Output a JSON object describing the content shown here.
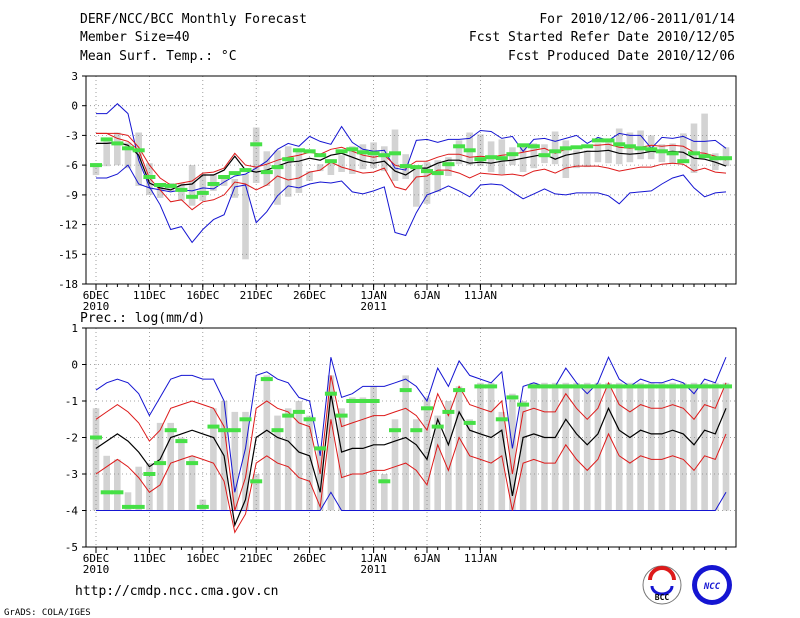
{
  "header": {
    "title": "DERF/NCC/BCC Monthly Forecast",
    "member_size": "Member Size=40",
    "variable": "Mean Surf. Temp.: °C",
    "period": "For 2010/12/06-2011/01/14",
    "started": "Fcst Started Refer Date 2010/12/05",
    "produced": "Fcst Produced Date 2010/12/06"
  },
  "footer": {
    "url": "http://cmdp.ncc.cma.gov.cn",
    "grads": "GrADS: COLA/IGES",
    "logo1": "BCC",
    "logo2": "NCC"
  },
  "colors": {
    "bar": "#d3d3d3",
    "green": "#46e046",
    "red": "#dd1a1a",
    "blue": "#1515d2",
    "black": "#000000",
    "grid": "#888888"
  },
  "chart_data": [
    {
      "type": "line",
      "title": "Mean Surf. Temp.: °C",
      "x_ticks": [
        "6DEC",
        "11DEC",
        "16DEC",
        "21DEC",
        "26DEC",
        "1JAN",
        "6JAN",
        "11JAN"
      ],
      "x_year_labels": [
        "2010",
        "2011"
      ],
      "ylim": [
        -18,
        3
      ],
      "y_ticks": [
        "3",
        "0",
        "-3",
        "-6",
        "-9",
        "-12",
        "-15",
        "-18"
      ],
      "series": [
        {
          "name": "max",
          "values": [
            -0.8,
            -0.8,
            0.2,
            -0.8,
            -5.5,
            -8.2,
            -10,
            -12.5,
            -12.2,
            -13.8,
            -12.5,
            -11.5,
            -11,
            -8.2,
            -8,
            -11.8,
            -10.7,
            -9.1,
            -8.1,
            -8.3,
            -7.9,
            -7.7,
            -7.8,
            -7.6,
            -8.7,
            -8.9,
            -8.6,
            -8.2,
            -12.8,
            -13.1,
            -10.8,
            -9,
            -8.6,
            -8.1,
            -8.6,
            -9.2,
            -8,
            -7.9,
            -8,
            -8.7,
            -9.4,
            -8.9,
            -8.4,
            -8.9,
            -9,
            -8.8,
            -8.8,
            -8.8,
            -9.1,
            -9.9,
            -8.8,
            -8.7,
            -8.6,
            -7.9,
            -7.3,
            -7,
            -8.3,
            -9.2,
            -8.8,
            -8.7
          ]
        },
        {
          "name": "upper",
          "values": [
            -2.8,
            -2.8,
            -3.3,
            -3.6,
            -4.5,
            -7.3,
            -8.5,
            -9.7,
            -9.5,
            -10.5,
            -9.7,
            -9.5,
            -9,
            -7.7,
            -7.9,
            -8.5,
            -8,
            -7.1,
            -7.5,
            -7.3,
            -6.7,
            -6.5,
            -5.7,
            -6.2,
            -6.5,
            -6.8,
            -6.7,
            -6.3,
            -8.2,
            -8.5,
            -7.2,
            -7.1,
            -6.5,
            -6.5,
            -6.8,
            -7.3,
            -6.8,
            -6.9,
            -7,
            -6.9,
            -7.1,
            -6.6,
            -6.4,
            -6.8,
            -6.3,
            -6.1,
            -6.1,
            -6.1,
            -6.3,
            -6.6,
            -6.4,
            -6.2,
            -6.2,
            -5.9,
            -5.8,
            -5.9,
            -6.6,
            -6.3,
            -6.7,
            -6.8
          ]
        },
        {
          "name": "median",
          "values": [
            -3.8,
            -3.8,
            -3.7,
            -4,
            -5,
            -7.8,
            -8.3,
            -8.5,
            -8,
            -7.9,
            -7,
            -7,
            -6.5,
            -5.1,
            -6.5,
            -6.7,
            -6.5,
            -6.1,
            -5.7,
            -5.6,
            -5.3,
            -5.5,
            -5,
            -4.8,
            -5.2,
            -5.6,
            -5.8,
            -5.6,
            -6.6,
            -7,
            -6.3,
            -6.3,
            -5.8,
            -5.5,
            -5.5,
            -5.8,
            -5.7,
            -5.8,
            -5.6,
            -5.5,
            -5.3,
            -5.1,
            -4.9,
            -5.4,
            -5,
            -4.8,
            -4.6,
            -4.6,
            -4.5,
            -4.8,
            -4.9,
            -4.8,
            -4.6,
            -4.7,
            -4.6,
            -4.7,
            -5.3,
            -5.4,
            -5.7,
            -6.1
          ]
        },
        {
          "name": "lower",
          "values": [
            -2.8,
            -2.8,
            -2.8,
            -3,
            -4.2,
            -6,
            -7.3,
            -8,
            -7.8,
            -7.6,
            -6.8,
            -6.7,
            -6.3,
            -4.8,
            -6,
            -6.2,
            -5.9,
            -5.5,
            -5.2,
            -5,
            -4.7,
            -4.9,
            -4.4,
            -4.2,
            -4.6,
            -5,
            -5.2,
            -5,
            -6,
            -6.3,
            -5.6,
            -5.6,
            -5.2,
            -4.9,
            -4.9,
            -5.2,
            -5.1,
            -5.2,
            -5,
            -4.9,
            -4.7,
            -4.5,
            -4.3,
            -4.8,
            -4.4,
            -4.2,
            -4,
            -4,
            -3.9,
            -4.2,
            -4.3,
            -4.2,
            -4,
            -4.1,
            -4,
            -4.1,
            -4.7,
            -4.8,
            -5.1,
            -5.5
          ]
        },
        {
          "name": "min",
          "values": [
            -7.3,
            -7.3,
            -6.9,
            -6,
            -7.9,
            -8.3,
            -8.5,
            -8.7,
            -8.5,
            -8.6,
            -8.3,
            -8.4,
            -7.7,
            -7.1,
            -6.9,
            -6.3,
            -5.6,
            -4.4,
            -3.8,
            -4.1,
            -3.1,
            -3.6,
            -3.9,
            -2.1,
            -3.7,
            -4.4,
            -4.6,
            -4.5,
            -6.3,
            -6.5,
            -3.5,
            -3.4,
            -3.7,
            -3.4,
            -3.4,
            -3.3,
            -2.5,
            -2.6,
            -3.3,
            -3.1,
            -4.6,
            -3.4,
            -3.3,
            -3.6,
            -3.3,
            -3,
            -3.8,
            -3.2,
            -3.5,
            -2.8,
            -3,
            -3,
            -4.3,
            -3.2,
            -3.3,
            -3.1,
            -3.6,
            -3.6,
            -3.5,
            -4.3
          ]
        },
        {
          "name": "green",
          "values": [
            -6,
            -3.4,
            -3.8,
            -4.3,
            -4.5,
            -7.2,
            -8,
            -8.1,
            -8.5,
            -9.2,
            -8.8,
            -7.9,
            -7.2,
            -6.8,
            -6.5,
            -3.9,
            -6.7,
            -6.2,
            -5.4,
            -4.5,
            -4.6,
            -5,
            -5.6,
            -4.6,
            -4.4,
            -4.7,
            -4.8,
            -5,
            -4.8,
            -6.1,
            -6.2,
            -6.6,
            -6.8,
            -5.9,
            -4.1,
            -4.5,
            -5.4,
            -5.2,
            -5.3,
            -4.9,
            -4,
            -4.1,
            -5,
            -4.6,
            -4.3,
            -4.2,
            -4.1,
            -3.5,
            -3.5,
            -3.9,
            -4.1,
            -4.3,
            -4.4,
            -4.6,
            -4.8,
            -5.6,
            -4.8,
            -5.1,
            -5.3,
            -5.3
          ]
        },
        {
          "name": "obs_bar_top",
          "values": [
            -5.8,
            -3.6,
            -2.7,
            -3.7,
            -2.7,
            -5.8,
            -7.8,
            -7.8,
            -7.8,
            -6,
            -6.9,
            -6.9,
            -7.1,
            -7.4,
            -6.9,
            -2.2,
            -4.6,
            -4.5,
            -4.1,
            -4.5,
            -6.6,
            -5.9,
            -5.4,
            -5,
            -4.1,
            -3.9,
            -3.7,
            -4.1,
            -2.4,
            -4.9,
            -6.1,
            -5.7,
            -5.5,
            -5.2,
            -3.5,
            -2.7,
            -2.9,
            -3.6,
            -3.4,
            -4.2,
            -3.9,
            -3.8,
            -3.9,
            -2.6,
            -3.5,
            -4.5,
            -4.5,
            -3.8,
            -3.5,
            -2.3,
            -2.7,
            -2.5,
            -3,
            -3.9,
            -3.8,
            -2.8,
            -1.8,
            -0.8,
            -4.8,
            -4.2
          ]
        },
        {
          "name": "obs_bar_bottom",
          "values": [
            -7,
            -6.1,
            -6,
            -6.3,
            -8.1,
            -9,
            -9.3,
            -8.6,
            -9.6,
            -10.1,
            -9.6,
            -8.6,
            -8.1,
            -9.3,
            -15.5,
            -7.8,
            -8.1,
            -10,
            -9.2,
            -8.8,
            -7.6,
            -6.6,
            -7,
            -6.7,
            -6.9,
            -6.4,
            -6.3,
            -6.6,
            -7.6,
            -7.4,
            -10.2,
            -9.9,
            -8.7,
            -7.1,
            -5.9,
            -6,
            -6.1,
            -6.7,
            -6.9,
            -6,
            -6.7,
            -6.3,
            -5.8,
            -5.9,
            -7.3,
            -6.3,
            -6.2,
            -5.7,
            -5.8,
            -5.9,
            -5.7,
            -5.4,
            -5.4,
            -5.7,
            -5.8,
            -5.5,
            -6.8,
            -5.1,
            -6.5,
            -6.1
          ]
        }
      ]
    },
    {
      "type": "line",
      "title": "Prec.: log(mm/d)",
      "x_ticks": [
        "6DEC",
        "11DEC",
        "16DEC",
        "21DEC",
        "26DEC",
        "1JAN",
        "6JAN",
        "11JAN"
      ],
      "x_year_labels": [
        "2010",
        "2011"
      ],
      "ylim": [
        -5,
        1
      ],
      "y_ticks": [
        "1",
        "0",
        "-1",
        "-2",
        "-3",
        "-4",
        "-5"
      ],
      "series": [
        {
          "name": "max",
          "values": [
            -0.7,
            -0.5,
            -0.4,
            -0.5,
            -0.8,
            -1.4,
            -0.9,
            -0.4,
            -0.3,
            -0.3,
            -0.4,
            -0.4,
            -1,
            -3.5,
            -2.3,
            -0.3,
            -0.2,
            -0.4,
            -0.5,
            -0.9,
            -1,
            -2.5,
            0.2,
            -0.9,
            -0.8,
            -0.6,
            -0.6,
            -0.6,
            -0.5,
            -0.4,
            -0.6,
            -1,
            -0.1,
            -0.6,
            0.1,
            -0.3,
            -0.4,
            -0.5,
            -0.2,
            -2.3,
            -0.6,
            -0.5,
            -0.6,
            -0.6,
            -0.1,
            -0.5,
            -0.8,
            -0.5,
            0.2,
            -0.4,
            -0.6,
            -0.4,
            -0.5,
            -0.5,
            -0.4,
            -0.5,
            -0.8,
            -0.4,
            -0.5,
            0.2
          ]
        },
        {
          "name": "upper",
          "values": [
            -1.5,
            -1.3,
            -1.1,
            -1.3,
            -1.6,
            -2.1,
            -1.8,
            -1.2,
            -1.1,
            -1,
            -1.1,
            -1.2,
            -1.7,
            -4,
            -3.1,
            -1.2,
            -1,
            -1.2,
            -1.3,
            -1.6,
            -1.7,
            -3,
            -0.3,
            -1.7,
            -1.6,
            -1.5,
            -1.4,
            -1.4,
            -1.3,
            -1.2,
            -1.4,
            -1.8,
            -0.8,
            -1.4,
            -0.6,
            -1.1,
            -1.2,
            -1.3,
            -1,
            -3,
            -1.3,
            -1.2,
            -1.3,
            -1.3,
            -0.8,
            -1.2,
            -1.5,
            -1.2,
            -0.5,
            -1.1,
            -1.3,
            -1.1,
            -1.2,
            -1.2,
            -1.1,
            -1.2,
            -1.5,
            -1.1,
            -1.2,
            -0.5
          ]
        },
        {
          "name": "median",
          "values": [
            -2.3,
            -2.1,
            -1.9,
            -2.1,
            -2.4,
            -2.8,
            -2.6,
            -2,
            -1.9,
            -1.8,
            -1.9,
            -2,
            -2.5,
            -4.4,
            -3.7,
            -2,
            -1.8,
            -2,
            -2.1,
            -2.4,
            -2.5,
            -3.5,
            -0.8,
            -2.4,
            -2.3,
            -2.3,
            -2.2,
            -2.2,
            -2.1,
            -2,
            -2.2,
            -2.6,
            -1.5,
            -2.2,
            -1.3,
            -1.8,
            -1.9,
            -2,
            -1.8,
            -3.6,
            -2,
            -1.9,
            -2,
            -2,
            -1.5,
            -1.9,
            -2.2,
            -1.9,
            -1.2,
            -1.8,
            -2,
            -1.8,
            -1.9,
            -1.9,
            -1.8,
            -1.9,
            -2.2,
            -1.8,
            -1.9,
            -1.2
          ]
        },
        {
          "name": "lower",
          "values": [
            -3,
            -2.8,
            -2.6,
            -2.8,
            -3.1,
            -3.5,
            -3.3,
            -2.7,
            -2.6,
            -2.5,
            -2.6,
            -2.7,
            -3.2,
            -4.6,
            -4.1,
            -2.7,
            -2.5,
            -2.7,
            -2.8,
            -3.1,
            -3.2,
            -3.9,
            -1.5,
            -3.1,
            -3,
            -3,
            -2.9,
            -2.9,
            -2.8,
            -2.7,
            -2.9,
            -3.3,
            -2.2,
            -2.9,
            -2,
            -2.5,
            -2.6,
            -2.7,
            -2.5,
            -4,
            -2.7,
            -2.6,
            -2.7,
            -2.7,
            -2.2,
            -2.6,
            -2.9,
            -2.6,
            -1.9,
            -2.5,
            -2.7,
            -2.5,
            -2.6,
            -2.6,
            -2.5,
            -2.6,
            -2.9,
            -2.5,
            -2.6,
            -1.9
          ]
        },
        {
          "name": "min",
          "values": [
            -4,
            -4,
            -4,
            -4,
            -4,
            -4,
            -4,
            -4,
            -4,
            -4,
            -4,
            -4,
            -4,
            -4,
            -4,
            -4,
            -4,
            -4,
            -4,
            -4,
            -4,
            -4,
            -3.5,
            -4,
            -4,
            -4,
            -4,
            -4,
            -4,
            -4,
            -4,
            -4,
            -4,
            -4,
            -4,
            -4,
            -4,
            -4,
            -4,
            -4,
            -4,
            -4,
            -4,
            -4,
            -4,
            -4,
            -4,
            -4,
            -4,
            -4,
            -4,
            -4,
            -4,
            -4,
            -4,
            -4,
            -4,
            -4,
            -4,
            -3.5
          ]
        },
        {
          "name": "green",
          "values": [
            -2,
            -3.5,
            -3.5,
            -3.9,
            -3.9,
            -3,
            -2.7,
            -1.8,
            -2.1,
            -2.7,
            -3.9,
            -1.7,
            -1.8,
            -1.8,
            -1.5,
            -3.2,
            -0.4,
            -1.8,
            -1.4,
            -1.3,
            -1.5,
            -2.3,
            -0.8,
            -1.4,
            -1,
            -1,
            -1,
            -3.2,
            -1.8,
            -0.7,
            -1.8,
            -1.2,
            -1.7,
            -1.3,
            -0.7,
            -1.6,
            -0.6,
            -0.6,
            -1.5,
            -0.9,
            -1.1,
            -0.6,
            -0.6,
            -0.6,
            -0.6,
            -0.6,
            -0.6,
            -0.6,
            -0.6,
            -0.6,
            -0.6,
            -0.6,
            -0.6,
            -0.6,
            -0.6,
            -0.6,
            -0.6,
            -0.6,
            -0.6,
            -0.6
          ]
        },
        {
          "name": "obs_bar_top",
          "values": [
            -1.2,
            -2.5,
            -2.6,
            -3.5,
            -2.8,
            -2.7,
            -1.6,
            -1.6,
            -2,
            -2.5,
            -3.7,
            -1.2,
            -1,
            -1.3,
            -1.3,
            -3,
            -0.3,
            -1.4,
            -1.2,
            -1,
            -1.4,
            -2.3,
            -0.3,
            -1.2,
            -0.9,
            -0.9,
            -0.6,
            -3,
            -1.5,
            -0.3,
            -1.5,
            -0.9,
            -1.4,
            -1,
            -0.6,
            -1.5,
            -0.5,
            -0.5,
            -1.3,
            -0.8,
            -1,
            -0.5,
            -0.5,
            -0.5,
            -0.5,
            -0.5,
            -0.5,
            -0.5,
            -0.5,
            -0.5,
            -0.5,
            -0.5,
            -0.5,
            -0.5,
            -0.5,
            -0.5,
            -0.5,
            -0.5,
            -0.5,
            -0.5
          ]
        },
        {
          "name": "obs_bar_bottom",
          "values": [
            -4,
            -4,
            -4,
            -4,
            -4,
            -4,
            -4,
            -4,
            -4,
            -4,
            -4,
            -4,
            -4,
            -4,
            -4,
            -4,
            -4,
            -4,
            -4,
            -4,
            -4,
            -4,
            -4,
            -4,
            -4,
            -4,
            -4,
            -4,
            -4,
            -4,
            -4,
            -4,
            -4,
            -4,
            -4,
            -4,
            -4,
            -4,
            -4,
            -4,
            -4,
            -4,
            -4,
            -4,
            -4,
            -4,
            -4,
            -4,
            -4,
            -4,
            -4,
            -4,
            -4,
            -4,
            -4,
            -4,
            -4,
            -4,
            -4,
            -4
          ]
        }
      ]
    }
  ]
}
